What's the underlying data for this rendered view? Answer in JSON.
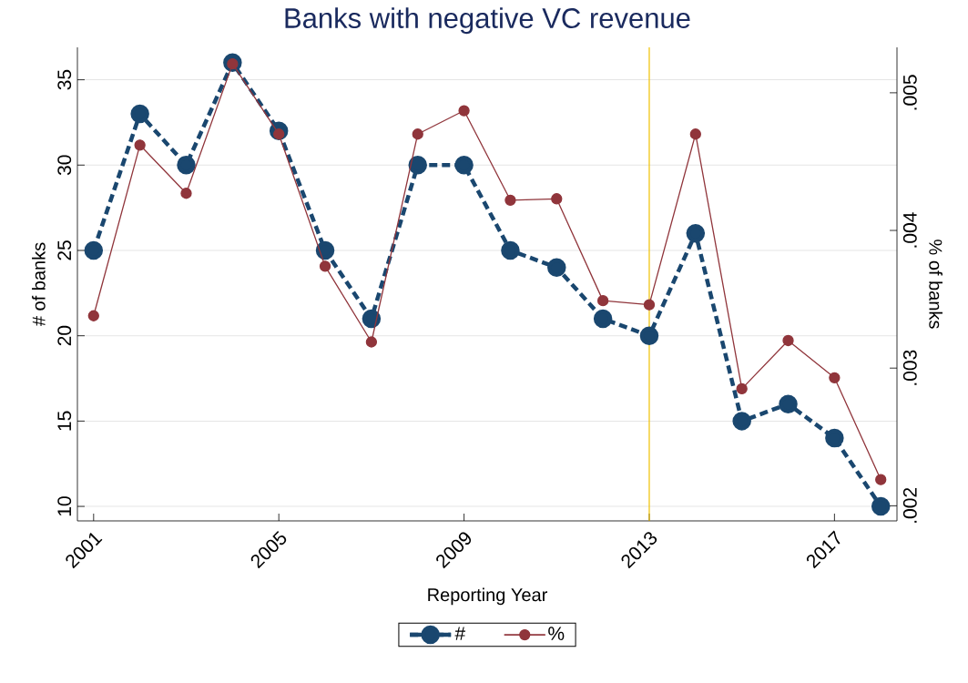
{
  "chart_data": {
    "type": "line",
    "title": "Banks with negative VC revenue",
    "xlabel": "Reporting Year",
    "ylabel": "# of banks",
    "y2label": "% of banks",
    "x": [
      2001,
      2002,
      2003,
      2004,
      2005,
      2006,
      2007,
      2008,
      2009,
      2010,
      2011,
      2012,
      2013,
      2014,
      2015,
      2016,
      2017,
      2018
    ],
    "series": [
      {
        "name": "#",
        "color": "#1a476f",
        "line_style": "dashed",
        "values": [
          25,
          33,
          30,
          36,
          32,
          25,
          21,
          30,
          30,
          25,
          24,
          21,
          20,
          26,
          15,
          16,
          14,
          10
        ]
      },
      {
        "name": "%",
        "color": "#90353b",
        "line_style": "solid",
        "axis": "y2",
        "values": [
          0.00338,
          0.00462,
          0.00427,
          0.00521,
          0.0047,
          0.00374,
          0.00319,
          0.0047,
          0.00487,
          0.00422,
          0.00423,
          0.00349,
          0.00346,
          0.0047,
          0.00285,
          0.0032,
          0.00293,
          0.00219
        ]
      }
    ],
    "xlim": [
      2000.65,
      2018.35
    ],
    "xticks": [
      2001,
      2005,
      2009,
      2013,
      2017
    ],
    "ylim": [
      9.15,
      36.9
    ],
    "yticks": [
      10,
      15,
      20,
      25,
      30,
      35
    ],
    "y2lim": [
      0.00189,
      0.00533
    ],
    "y2ticks": [
      {
        "value": 0.002,
        "label": ".002"
      },
      {
        "value": 0.003,
        "label": ".003"
      },
      {
        "value": 0.004,
        "label": ".004"
      },
      {
        "value": 0.005,
        "label": ".005"
      }
    ],
    "ref_lines": [
      {
        "axis": "x",
        "value": 2013,
        "color": "#f0c000"
      }
    ],
    "grid": "y",
    "legend": "bottom",
    "marker": "circle"
  }
}
